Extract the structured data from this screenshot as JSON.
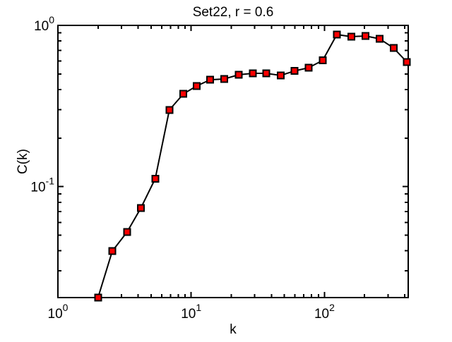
{
  "chart_data": {
    "type": "line",
    "title": "Set22, r = 0.6",
    "xlabel": "k",
    "ylabel": "C(k)",
    "x_scale": "log",
    "y_scale": "log",
    "xlim": [
      1,
      425
    ],
    "ylim": [
      0.0205,
      1.0
    ],
    "x_major_ticks": [
      1,
      10,
      100
    ],
    "y_major_ticks": [
      1,
      0.1
    ],
    "grid": false,
    "legend": false,
    "background_color": "#ffffff",
    "line_color": "#000000",
    "marker": {
      "shape": "square",
      "fill_color": "#ff0000",
      "edge_color": "#000000"
    },
    "series": [
      {
        "name": "C(k)",
        "x": [
          2.0,
          2.56,
          3.3,
          4.19,
          5.37,
          6.86,
          8.74,
          11.0,
          13.9,
          17.7,
          22.7,
          29.0,
          36.6,
          47.0,
          59.6,
          76.0,
          97.0,
          124,
          159,
          203,
          259,
          330,
          416
        ],
        "y": [
          0.0205,
          0.0398,
          0.0522,
          0.0736,
          0.112,
          0.299,
          0.376,
          0.421,
          0.46,
          0.465,
          0.494,
          0.504,
          0.504,
          0.489,
          0.522,
          0.546,
          0.607,
          0.877,
          0.851,
          0.86,
          0.826,
          0.724,
          0.592
        ]
      }
    ]
  }
}
